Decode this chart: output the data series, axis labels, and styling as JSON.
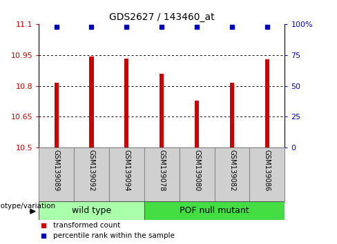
{
  "title": "GDS2627 / 143460_at",
  "samples": [
    "GSM139089",
    "GSM139092",
    "GSM139094",
    "GSM139078",
    "GSM139080",
    "GSM139082",
    "GSM139086"
  ],
  "bar_values": [
    10.815,
    10.945,
    10.935,
    10.86,
    10.73,
    10.815,
    10.93
  ],
  "bar_color": "#cc0000",
  "percentile_color": "#0000bb",
  "ymin": 10.5,
  "ymax": 11.1,
  "yticks": [
    10.5,
    10.65,
    10.8,
    10.95,
    11.1
  ],
  "ytick_labels": [
    "10.5",
    "10.65",
    "10.8",
    "10.95",
    "11.1"
  ],
  "right_yticks": [
    0,
    25,
    50,
    75,
    100
  ],
  "right_ytick_labels": [
    "0",
    "25",
    "50",
    "75",
    "100%"
  ],
  "groups": [
    {
      "label": "wild type",
      "sample_count": 3,
      "color": "#aaffaa"
    },
    {
      "label": "POF null mutant",
      "sample_count": 4,
      "color": "#44dd44"
    }
  ],
  "genotype_label": "genotype/variation",
  "legend_items": [
    {
      "color": "#cc0000",
      "label": "transformed count"
    },
    {
      "color": "#0000bb",
      "label": "percentile rank within the sample"
    }
  ],
  "bar_width": 0.12,
  "tick_color_left": "#cc0000",
  "tick_color_right": "#0000bb",
  "grid_color": "#000000",
  "label_bg": "#d0d0d0"
}
